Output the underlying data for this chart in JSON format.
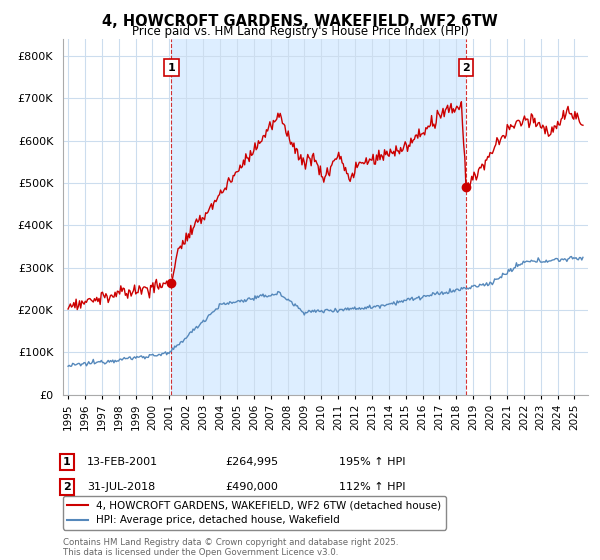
{
  "title_line1": "4, HOWCROFT GARDENS, WAKEFIELD, WF2 6TW",
  "title_line2": "Price paid vs. HM Land Registry's House Price Index (HPI)",
  "ytick_values": [
    0,
    100000,
    200000,
    300000,
    400000,
    500000,
    600000,
    700000,
    800000
  ],
  "ylim": [
    0,
    840000
  ],
  "xlim_start": 1994.7,
  "xlim_end": 2025.8,
  "sale1_x": 2001.12,
  "sale1_y": 264995,
  "sale1_label": "1",
  "sale2_x": 2018.58,
  "sale2_y": 490000,
  "sale2_label": "2",
  "legend_line1": "4, HOWCROFT GARDENS, WAKEFIELD, WF2 6TW (detached house)",
  "legend_line2": "HPI: Average price, detached house, Wakefield",
  "annotation1_date": "13-FEB-2001",
  "annotation1_price": "£264,995",
  "annotation1_hpi": "195% ↑ HPI",
  "annotation2_date": "31-JUL-2018",
  "annotation2_price": "£490,000",
  "annotation2_hpi": "112% ↑ HPI",
  "copyright_text": "Contains HM Land Registry data © Crown copyright and database right 2025.\nThis data is licensed under the Open Government Licence v3.0.",
  "red_color": "#cc0000",
  "blue_color": "#5588bb",
  "shade_color": "#ddeeff",
  "background_color": "#ffffff",
  "grid_color": "#ccddee"
}
